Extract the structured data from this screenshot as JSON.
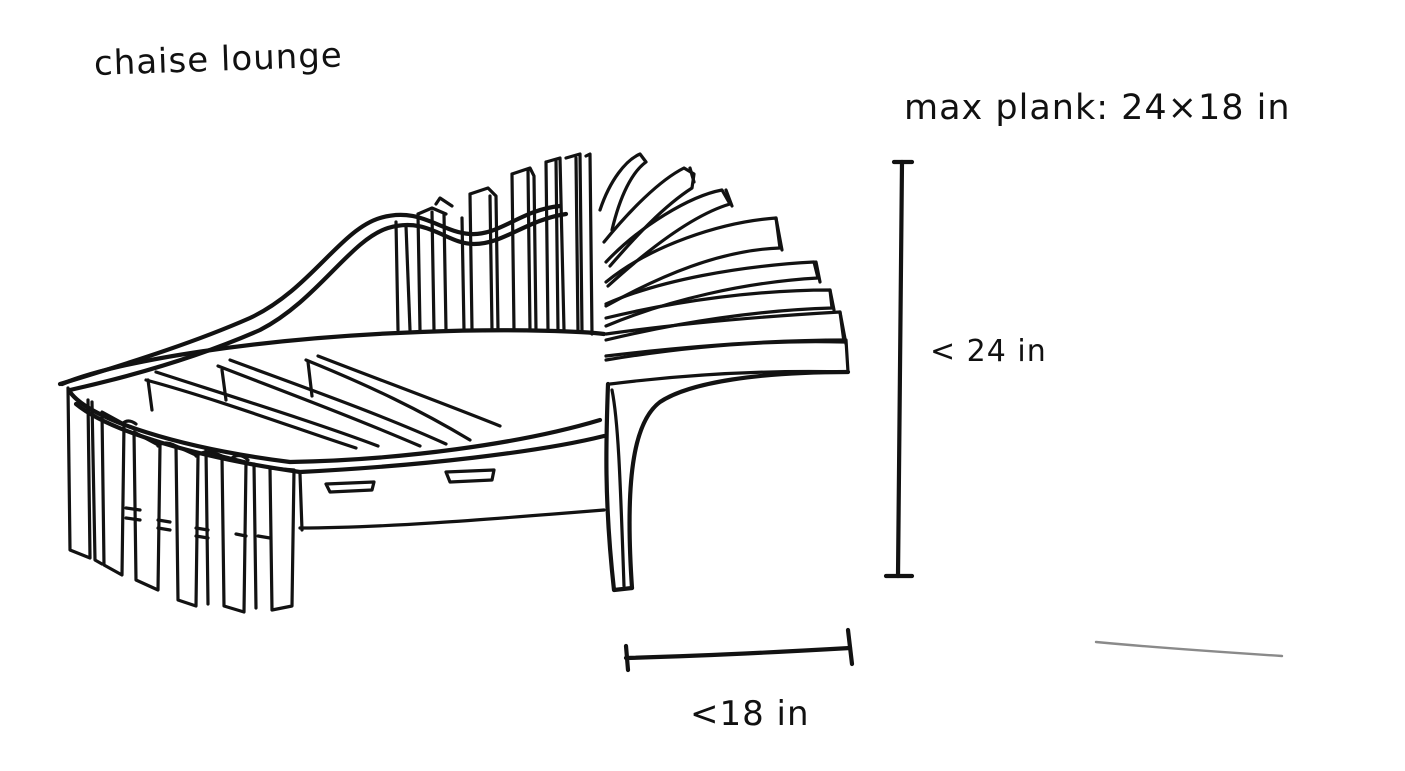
{
  "title": "chaise lounge",
  "spec": "max plank: 24×18 in",
  "dimensions": {
    "height_label": "< 24 in",
    "width_label": "<18 in"
  },
  "colors": {
    "ink": "#121212",
    "paper": "#ffffff",
    "smudge": "#8a8a8a"
  }
}
